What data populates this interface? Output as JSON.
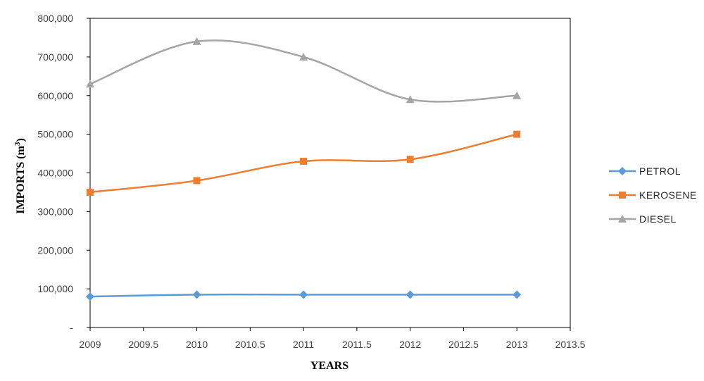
{
  "chart_data": {
    "type": "line",
    "smooth": true,
    "x": [
      2009,
      2010,
      2011,
      2012,
      2013
    ],
    "series": [
      {
        "name": "PETROL",
        "color": "#5B9BD5",
        "marker": "diamond",
        "values": [
          80000,
          85000,
          85000,
          85000,
          85000
        ]
      },
      {
        "name": "KEROSENE",
        "color": "#ED7D31",
        "marker": "square",
        "values": [
          350000,
          380000,
          430000,
          435000,
          500000
        ]
      },
      {
        "name": "DIESEL",
        "color": "#A5A5A5",
        "marker": "triangle",
        "values": [
          630000,
          740000,
          700000,
          590000,
          600000
        ]
      }
    ],
    "xlabel": "YEARS",
    "ylabel_main": "IMPORTS  (m",
    "ylabel_sup": "3",
    "ylabel_close": ")",
    "xlim": [
      2009,
      2013.5
    ],
    "ylim": [
      0,
      800000
    ],
    "x_ticks": [
      "2009",
      "2009.5",
      "2010",
      "2010.5",
      "2011",
      "2011.5",
      "2012",
      "2012.5",
      "2013",
      "2013.5"
    ],
    "y_ticks": [
      "-",
      "100,000",
      "200,000",
      "300,000",
      "400,000",
      "500,000",
      "600,000",
      "700,000",
      "800,000"
    ],
    "x_tick_values": [
      2009,
      2009.5,
      2010,
      2010.5,
      2011,
      2011.5,
      2012,
      2012.5,
      2013,
      2013.5
    ],
    "y_tick_values": [
      0,
      100000,
      200000,
      300000,
      400000,
      500000,
      600000,
      700000,
      800000
    ],
    "grid": false,
    "legend_position": "right"
  }
}
